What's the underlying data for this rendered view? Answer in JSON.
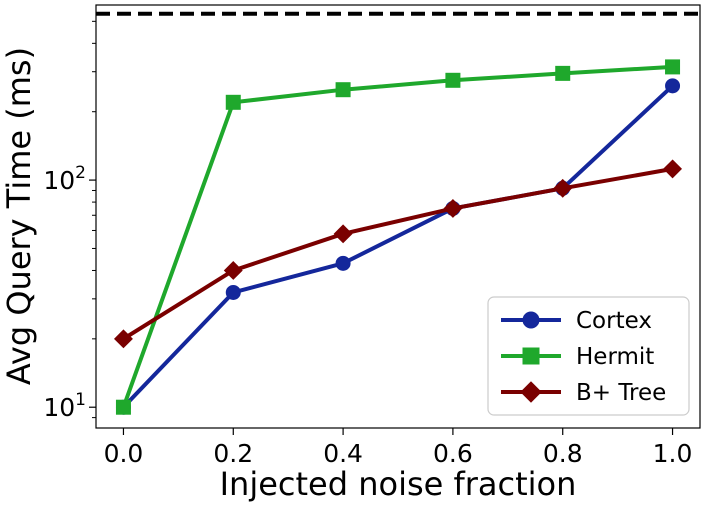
{
  "chart_data": {
    "type": "line",
    "title": "",
    "xlabel": "Injected noise fraction",
    "ylabel": "Avg Query Time (ms)",
    "yscale": "log",
    "x": [
      0.0,
      0.2,
      0.4,
      0.6,
      0.8,
      1.0
    ],
    "x_tick_labels": [
      "0.0",
      "0.2",
      "0.4",
      "0.6",
      "0.8",
      "1.0"
    ],
    "xlim": [
      -0.05,
      1.05
    ],
    "ylim": [
      8.1,
      590
    ],
    "y_major_ticks": [
      {
        "value": 10,
        "base": "10",
        "exp": "1"
      },
      {
        "value": 100,
        "base": "10",
        "exp": "2"
      }
    ],
    "grid": false,
    "legend_position": "lower right",
    "series": [
      {
        "name": "Cortex",
        "color": "#14279b",
        "marker": "circle",
        "values": [
          10,
          32,
          43,
          75,
          92,
          260
        ]
      },
      {
        "name": "Hermit",
        "color": "#1fa82c",
        "marker": "square",
        "values": [
          10,
          220,
          250,
          275,
          295,
          315
        ]
      },
      {
        "name": "B+ Tree",
        "color": "#7a0000",
        "marker": "diamond",
        "values": [
          20,
          40,
          58,
          75,
          92,
          112
        ]
      }
    ],
    "reference_line": {
      "value": 540,
      "style": "dashed",
      "color": "#000000"
    }
  }
}
